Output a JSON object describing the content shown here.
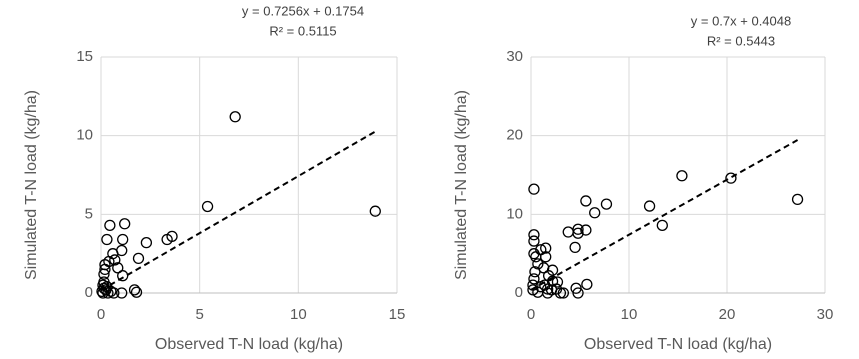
{
  "chart_data": [
    {
      "type": "scatter",
      "annotations": [
        "y = 0.7256x + 0.1754",
        "R² = 0.5115"
      ],
      "xlabel": "Observed T-N load (kg/ha)",
      "ylabel": "Simulated T-N load (kg/ha)",
      "xlim": [
        0,
        15
      ],
      "ylim": [
        0,
        15
      ],
      "xticks": [
        0,
        5,
        10,
        15
      ],
      "yticks": [
        0,
        5,
        10,
        15
      ],
      "grid": true,
      "color": "#000000",
      "trendline": {
        "slope": 0.7256,
        "intercept": 0.1754
      },
      "x": [
        6.8,
        13.9,
        5.4,
        3.6,
        3.35,
        2.3,
        1.2,
        0.45,
        0.3,
        1.1,
        1.05,
        0.6,
        0.7,
        0.4,
        1.9,
        0.85,
        0.2,
        0.15,
        0.15,
        1.1,
        1.7,
        1.8,
        1.05,
        0.05,
        0.15,
        0.25,
        0.1,
        0.35,
        0.5,
        0.65,
        0.1,
        0.3,
        0.2
      ],
      "values": [
        11.2,
        5.2,
        5.5,
        3.6,
        3.4,
        3.2,
        4.4,
        4.3,
        3.4,
        3.4,
        2.7,
        2.5,
        2.1,
        2.0,
        2.2,
        1.6,
        1.8,
        1.2,
        0.7,
        1.1,
        0.2,
        0.05,
        0.0,
        0.1,
        0.3,
        0.2,
        0.0,
        0.0,
        0.1,
        0.0,
        0.5,
        0.4,
        1.5
      ]
    },
    {
      "type": "scatter",
      "annotations": [
        "y = 0.7x + 0.4048",
        "R² = 0.5443"
      ],
      "xlabel": "Observed T-N load (kg/ha)",
      "ylabel": "Simulated T-N load (kg/ha)",
      "xlim": [
        0,
        30
      ],
      "ylim": [
        0,
        30
      ],
      "xticks": [
        0,
        10,
        20,
        30
      ],
      "yticks": [
        0,
        10,
        20,
        30
      ],
      "grid": true,
      "color": "#000000",
      "trendline": {
        "slope": 0.7,
        "intercept": 0.4048
      },
      "x": [
        27.2,
        20.4,
        15.4,
        12.1,
        13.4,
        7.7,
        6.5,
        5.6,
        5.6,
        4.8,
        4.8,
        3.8,
        4.5,
        5.7,
        4.6,
        4.8,
        0.3,
        0.3,
        0.3,
        0.3,
        0.5,
        0.7,
        1.0,
        1.5,
        1.5,
        1.3,
        1.8,
        2.2,
        0.4,
        0.3,
        0.2,
        0.2,
        0.7,
        1.0,
        1.4,
        1.7,
        2.1,
        2.6,
        2.7,
        2.2,
        3.0,
        3.3,
        1.7
      ],
      "values": [
        11.9,
        14.6,
        14.9,
        11.05,
        8.6,
        11.3,
        10.2,
        11.7,
        8.0,
        7.6,
        8.1,
        7.75,
        5.8,
        1.1,
        0.6,
        0.0,
        13.2,
        7.4,
        6.6,
        5.0,
        4.6,
        3.7,
        5.5,
        5.7,
        4.6,
        3.2,
        2.2,
        2.9,
        2.7,
        1.8,
        1.0,
        0.4,
        0.1,
        0.8,
        1.0,
        0.0,
        0.4,
        0.5,
        1.4,
        1.5,
        0.0,
        0.0,
        0.5
      ]
    }
  ]
}
